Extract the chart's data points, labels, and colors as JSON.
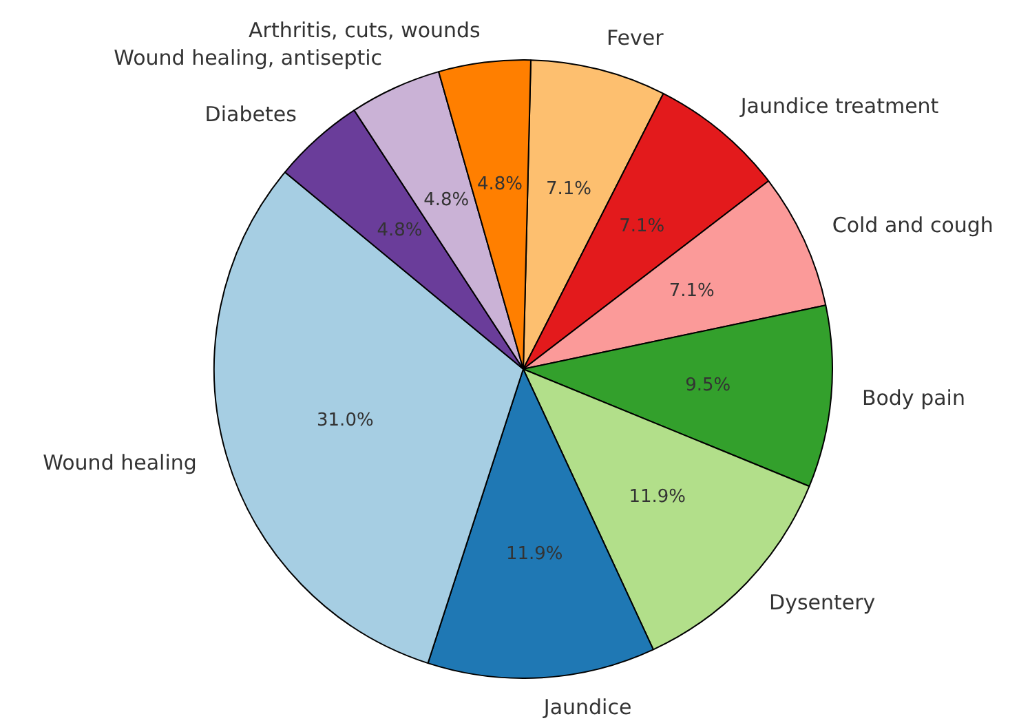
{
  "chart_data": {
    "type": "pie",
    "categories": [
      "Fever",
      "Jaundice treatment",
      "Cold and cough",
      "Body pain",
      "Dysentery",
      "Jaundice",
      "Wound healing",
      "Diabetes",
      "Wound healing, antiseptic",
      "Arthritis, cuts, wounds"
    ],
    "values": [
      7.1,
      7.1,
      7.1,
      9.5,
      11.9,
      11.9,
      31.0,
      4.8,
      4.8,
      4.8
    ],
    "value_labels": [
      "7.1%",
      "7.1%",
      "7.1%",
      "9.5%",
      "11.9%",
      "11.9%",
      "31.0%",
      "4.8%",
      "4.8%",
      "4.8%"
    ],
    "colors": [
      "#fdbf6f",
      "#e31a1c",
      "#fb9a99",
      "#33a02c",
      "#b2df8a",
      "#1f78b4",
      "#a6cee3",
      "#6a3d9a",
      "#cab2d6",
      "#ff7f00"
    ],
    "legend": false
  }
}
